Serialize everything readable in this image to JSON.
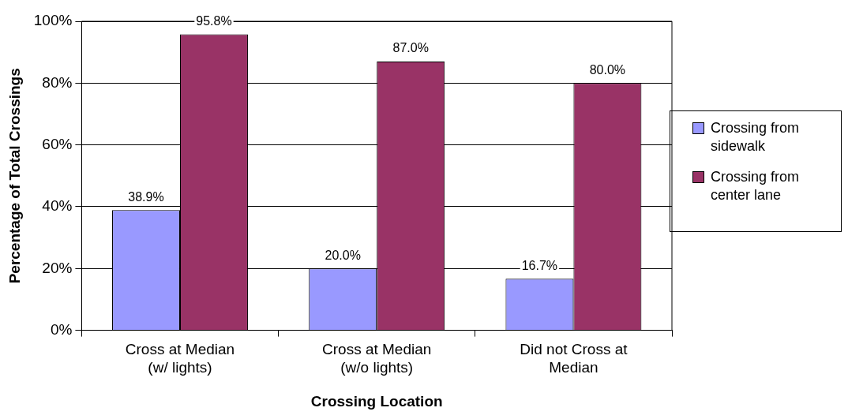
{
  "chart_data": {
    "type": "bar",
    "xlabel": "Crossing Location",
    "ylabel": "Percentage of Total Crossings",
    "categories": [
      "Cross at Median (w/ lights)",
      "Cross at Median (w/o lights)",
      "Did not Cross at Median"
    ],
    "series": [
      {
        "name": "Crossing from sidewalk",
        "color": "#9999ff",
        "values": [
          38.9,
          20.0,
          16.7
        ],
        "value_labels": [
          "38.9%",
          "20.0%",
          "16.7%"
        ]
      },
      {
        "name": "Crossing from center lane",
        "color": "#993366",
        "values": [
          95.8,
          87.0,
          80.0
        ],
        "value_labels": [
          "95.8%",
          "87.0%",
          "80.0%"
        ]
      }
    ],
    "ylim": [
      0,
      100
    ],
    "yticks": [
      {
        "value": 0,
        "label": "0%"
      },
      {
        "value": 20,
        "label": "20%"
      },
      {
        "value": 40,
        "label": "40%"
      },
      {
        "value": 60,
        "label": "60%"
      },
      {
        "value": 80,
        "label": "80%"
      },
      {
        "value": 100,
        "label": "100%"
      }
    ],
    "grid": "y",
    "legend": "right"
  }
}
